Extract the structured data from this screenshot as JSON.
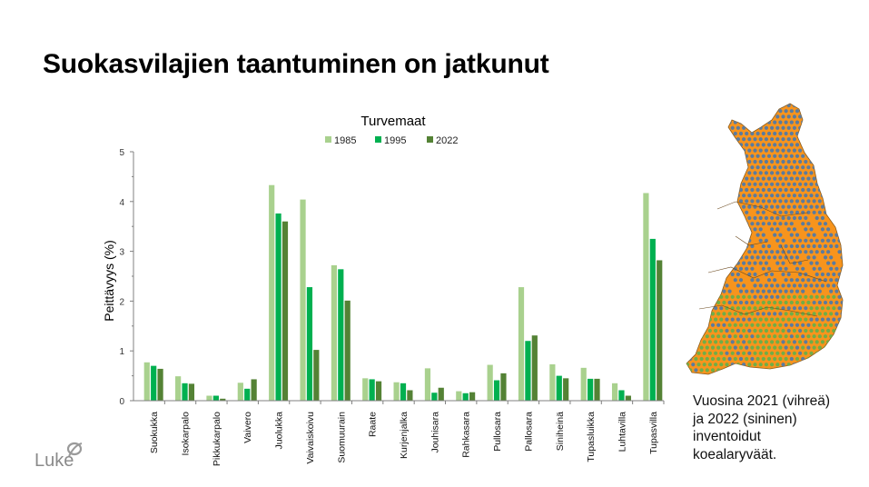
{
  "slide": {
    "title": "Suokasvilajien taantuminen on jatkunut",
    "caption_lines": [
      "Vuosina 2021 (vihreä)",
      "ja 2022 (sininen)",
      "inventoidut",
      "koealaryväät."
    ],
    "logo_text": "Luke"
  },
  "chart_data": {
    "type": "bar",
    "title": "Turvemaat",
    "xlabel": "",
    "ylabel": "Peittävyys (%)",
    "ylim": [
      0,
      5
    ],
    "yticks": [
      0,
      1,
      2,
      3,
      4,
      5
    ],
    "grid": false,
    "legend_position": "top",
    "categories": [
      "Suokukka",
      "Isokarpalo",
      "Pikkukarpalo",
      "Vaivero",
      "Juolukka",
      "Vaivaiskoivu",
      "Suomuurain",
      "Raate",
      "Kurjenjalka",
      "Jouhisara",
      "Rahkasara",
      "Pullosara",
      "Pallosara",
      "Siniheinä",
      "Tupasluikka",
      "Luhtavilla",
      "Tupasvilla"
    ],
    "series": [
      {
        "name": "1985",
        "color": "#a9d18e",
        "values": [
          0.77,
          0.49,
          0.1,
          0.36,
          4.33,
          4.04,
          2.72,
          0.45,
          0.37,
          0.65,
          0.19,
          0.72,
          2.28,
          0.73,
          0.66,
          0.35,
          4.17
        ]
      },
      {
        "name": "1995",
        "color": "#00b050",
        "values": [
          0.7,
          0.35,
          0.1,
          0.24,
          3.76,
          2.28,
          2.64,
          0.43,
          0.35,
          0.16,
          0.15,
          0.41,
          1.2,
          0.5,
          0.44,
          0.21,
          3.25
        ]
      },
      {
        "name": "2022",
        "color": "#548235",
        "values": [
          0.64,
          0.34,
          0.04,
          0.43,
          3.6,
          1.02,
          2.01,
          0.39,
          0.21,
          0.26,
          0.17,
          0.55,
          1.31,
          0.45,
          0.44,
          0.1,
          2.82
        ]
      }
    ]
  },
  "map": {
    "land_color": "#f7941d",
    "point_colors": {
      "2021": "#70ad47",
      "2022": "#5b7b9e"
    }
  }
}
